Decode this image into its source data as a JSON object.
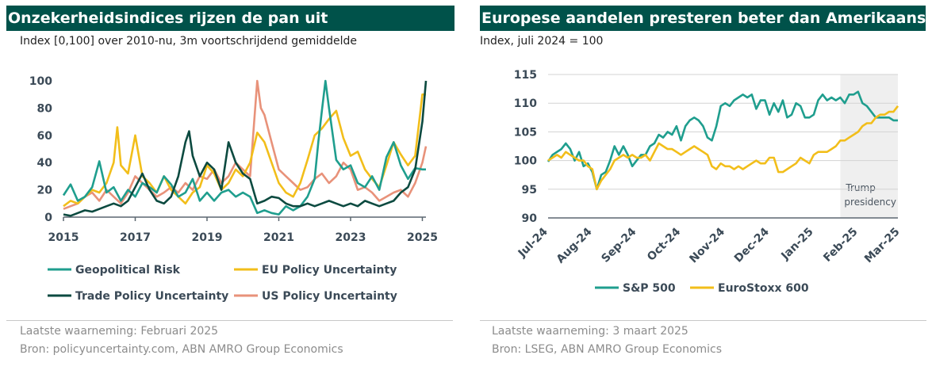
{
  "chart_data": [
    {
      "type": "line",
      "title": "Onzekerheidsindices rijzen de pan uit",
      "subtitle": "Index [0,100] over 2010-nu, 3m voortschrijdend gemiddelde",
      "ylim": [
        0,
        100
      ],
      "xlim": [
        2015,
        2025.1
      ],
      "yticks": [
        0,
        20,
        40,
        60,
        80,
        100
      ],
      "xticks": [
        2015,
        2017,
        2019,
        2021,
        2023,
        2025
      ],
      "xtick_labels": [
        "2015",
        "2017",
        "2019",
        "2021",
        "2023",
        "2025"
      ],
      "legend_position": "bottom",
      "series": [
        {
          "name": "Geopolitical Risk",
          "color": "#1f9e8e",
          "x": [
            2015,
            2015.2,
            2015.4,
            2015.6,
            2015.8,
            2016,
            2016.2,
            2016.4,
            2016.6,
            2016.8,
            2017,
            2017.2,
            2017.4,
            2017.6,
            2017.8,
            2018,
            2018.2,
            2018.4,
            2018.6,
            2018.8,
            2019,
            2019.2,
            2019.4,
            2019.6,
            2019.8,
            2020,
            2020.2,
            2020.4,
            2020.6,
            2020.8,
            2021,
            2021.2,
            2021.4,
            2021.6,
            2021.8,
            2022,
            2022.1,
            2022.2,
            2022.3,
            2022.4,
            2022.6,
            2022.8,
            2023,
            2023.2,
            2023.4,
            2023.6,
            2023.8,
            2024,
            2024.2,
            2024.4,
            2024.6,
            2024.8,
            2025,
            2025.1
          ],
          "y": [
            16,
            24,
            12,
            15,
            22,
            41,
            18,
            22,
            12,
            20,
            15,
            25,
            22,
            18,
            30,
            24,
            15,
            18,
            28,
            12,
            18,
            12,
            18,
            20,
            15,
            18,
            15,
            3,
            5,
            3,
            2,
            8,
            5,
            8,
            15,
            28,
            55,
            78,
            100,
            80,
            42,
            35,
            38,
            25,
            22,
            30,
            20,
            44,
            55,
            38,
            28,
            36,
            35,
            35
          ]
        },
        {
          "name": "EU Policy Uncertainty",
          "color": "#f2be1a",
          "x": [
            2015,
            2015.2,
            2015.4,
            2015.6,
            2015.8,
            2016,
            2016.2,
            2016.4,
            2016.5,
            2016.6,
            2016.8,
            2017,
            2017.2,
            2017.4,
            2017.6,
            2017.8,
            2018,
            2018.2,
            2018.4,
            2018.6,
            2018.8,
            2019,
            2019.2,
            2019.4,
            2019.6,
            2019.8,
            2020,
            2020.2,
            2020.4,
            2020.6,
            2020.8,
            2021,
            2021.2,
            2021.4,
            2021.6,
            2021.8,
            2022,
            2022.2,
            2022.4,
            2022.6,
            2022.8,
            2023,
            2023.2,
            2023.4,
            2023.6,
            2023.8,
            2024,
            2024.2,
            2024.4,
            2024.6,
            2024.8,
            2025,
            2025.1
          ],
          "y": [
            8,
            12,
            10,
            15,
            20,
            18,
            25,
            40,
            66,
            38,
            32,
            60,
            30,
            25,
            18,
            30,
            20,
            15,
            10,
            18,
            22,
            38,
            32,
            20,
            25,
            35,
            30,
            40,
            62,
            55,
            40,
            25,
            18,
            15,
            25,
            42,
            60,
            65,
            72,
            78,
            58,
            45,
            48,
            35,
            28,
            22,
            38,
            55,
            46,
            38,
            45,
            90,
            90
          ]
        },
        {
          "name": "Trade Policy Uncertainty",
          "color": "#0c4a40",
          "x": [
            2015,
            2015.2,
            2015.4,
            2015.6,
            2015.8,
            2016,
            2016.2,
            2016.4,
            2016.6,
            2016.8,
            2017,
            2017.2,
            2017.4,
            2017.6,
            2017.8,
            2018,
            2018.2,
            2018.4,
            2018.5,
            2018.6,
            2018.8,
            2019,
            2019.2,
            2019.4,
            2019.6,
            2019.8,
            2020,
            2020.2,
            2020.4,
            2020.6,
            2020.8,
            2021,
            2021.2,
            2021.4,
            2021.6,
            2021.8,
            2022,
            2022.2,
            2022.4,
            2022.6,
            2022.8,
            2023,
            2023.2,
            2023.4,
            2023.6,
            2023.8,
            2024,
            2024.2,
            2024.4,
            2024.6,
            2024.8,
            2025,
            2025.1
          ],
          "y": [
            2,
            1,
            3,
            5,
            4,
            6,
            8,
            10,
            8,
            12,
            22,
            32,
            20,
            12,
            10,
            15,
            30,
            55,
            63,
            45,
            30,
            40,
            35,
            20,
            55,
            40,
            32,
            28,
            10,
            12,
            15,
            14,
            10,
            8,
            8,
            10,
            8,
            10,
            12,
            10,
            8,
            10,
            8,
            12,
            10,
            8,
            10,
            12,
            18,
            22,
            35,
            70,
            100
          ]
        },
        {
          "name": "US Policy Uncertainty",
          "color": "#e8927a",
          "x": [
            2015,
            2015.2,
            2015.4,
            2015.6,
            2015.8,
            2016,
            2016.2,
            2016.4,
            2016.6,
            2016.8,
            2017,
            2017.2,
            2017.4,
            2017.6,
            2017.8,
            2018,
            2018.2,
            2018.4,
            2018.6,
            2018.8,
            2019,
            2019.2,
            2019.4,
            2019.6,
            2019.8,
            2020,
            2020.2,
            2020.3,
            2020.4,
            2020.5,
            2020.6,
            2020.8,
            2021,
            2021.2,
            2021.4,
            2021.6,
            2021.8,
            2022,
            2022.2,
            2022.4,
            2022.6,
            2022.8,
            2023,
            2023.2,
            2023.4,
            2023.6,
            2023.8,
            2024,
            2024.2,
            2024.4,
            2024.6,
            2024.8,
            2025,
            2025.1
          ],
          "y": [
            6,
            8,
            10,
            15,
            18,
            12,
            20,
            15,
            10,
            18,
            30,
            25,
            20,
            15,
            18,
            22,
            18,
            25,
            20,
            30,
            28,
            35,
            25,
            30,
            40,
            35,
            30,
            65,
            100,
            80,
            75,
            55,
            35,
            30,
            25,
            20,
            22,
            28,
            32,
            25,
            30,
            40,
            35,
            20,
            22,
            18,
            12,
            15,
            18,
            20,
            15,
            25,
            40,
            52
          ]
        }
      ]
    },
    {
      "type": "line",
      "title": "Europese aandelen presteren beter dan Amerikaanse",
      "subtitle": "Index, juli 2024 = 100",
      "ylim": [
        90,
        115
      ],
      "xlim": [
        0,
        7.9
      ],
      "yticks": [
        90,
        95,
        100,
        105,
        110,
        115
      ],
      "xticks": [
        0,
        1,
        2,
        3,
        4,
        5,
        6,
        7,
        7.95
      ],
      "xtick_labels": [
        "Jul-24",
        "Aug-24",
        "Sep-24",
        "Oct-24",
        "Nov-24",
        "Dec-24",
        "Jan-25",
        "Feb-25",
        "Mar-25"
      ],
      "shaded_region": {
        "x": [
          6.6,
          7.95
        ],
        "label_line1": "Trump",
        "label_line2": "presidency"
      },
      "legend_position": "bottom",
      "series": [
        {
          "name": "S&P 500",
          "color": "#1f9e8e",
          "x": [
            0,
            0.1,
            0.2,
            0.3,
            0.4,
            0.5,
            0.6,
            0.7,
            0.8,
            0.9,
            1.0,
            1.1,
            1.2,
            1.3,
            1.4,
            1.5,
            1.6,
            1.7,
            1.8,
            1.9,
            2.0,
            2.1,
            2.2,
            2.3,
            2.4,
            2.5,
            2.6,
            2.7,
            2.8,
            2.9,
            3.0,
            3.1,
            3.2,
            3.3,
            3.4,
            3.5,
            3.6,
            3.7,
            3.8,
            3.9,
            4.0,
            4.1,
            4.2,
            4.3,
            4.4,
            4.5,
            4.6,
            4.7,
            4.8,
            4.9,
            5.0,
            5.1,
            5.2,
            5.3,
            5.4,
            5.5,
            5.6,
            5.7,
            5.8,
            5.9,
            6.0,
            6.1,
            6.2,
            6.3,
            6.4,
            6.5,
            6.6,
            6.7,
            6.8,
            6.9,
            7.0,
            7.1,
            7.2,
            7.3,
            7.4,
            7.5,
            7.6,
            7.7,
            7.8,
            7.9
          ],
          "y": [
            99.8,
            101,
            101.5,
            102,
            103,
            102,
            100,
            101.5,
            99,
            99.5,
            98,
            95,
            97.5,
            98,
            100,
            102.5,
            101,
            102.5,
            101,
            99,
            100,
            101,
            101,
            102.5,
            103,
            104.5,
            104,
            105,
            104.5,
            106,
            103.5,
            106,
            107,
            107.5,
            107,
            106,
            104,
            103.5,
            106,
            109.5,
            110,
            109.5,
            110.5,
            111,
            111.5,
            111,
            111.5,
            109,
            110.5,
            110.5,
            108,
            110,
            108.5,
            110.5,
            107.5,
            108,
            110,
            109.5,
            107.5,
            107.5,
            108,
            110.5,
            111.5,
            110.5,
            111,
            110.5,
            111,
            110,
            111.5,
            111.5,
            112,
            110,
            109.5,
            108.5,
            107.5,
            107.5,
            107.5,
            107.5,
            107,
            107
          ]
        },
        {
          "name": "EuroStoxx 600",
          "color": "#f2be1a",
          "x": [
            0,
            0.1,
            0.2,
            0.3,
            0.4,
            0.5,
            0.6,
            0.7,
            0.8,
            0.9,
            1.0,
            1.1,
            1.2,
            1.3,
            1.4,
            1.5,
            1.6,
            1.7,
            1.8,
            1.9,
            2.0,
            2.1,
            2.2,
            2.3,
            2.4,
            2.5,
            2.6,
            2.7,
            2.8,
            2.9,
            3.0,
            3.1,
            3.2,
            3.3,
            3.4,
            3.5,
            3.6,
            3.7,
            3.8,
            3.9,
            4.0,
            4.1,
            4.2,
            4.3,
            4.4,
            4.5,
            4.6,
            4.7,
            4.8,
            4.9,
            5.0,
            5.1,
            5.2,
            5.3,
            5.4,
            5.5,
            5.6,
            5.7,
            5.8,
            5.9,
            6.0,
            6.1,
            6.2,
            6.3,
            6.4,
            6.5,
            6.6,
            6.7,
            6.8,
            6.9,
            7.0,
            7.1,
            7.2,
            7.3,
            7.4,
            7.5,
            7.6,
            7.7,
            7.8,
            7.9
          ],
          "y": [
            100,
            100.5,
            101,
            100.5,
            101.5,
            101,
            100.5,
            100,
            100,
            99,
            98.5,
            95,
            96.5,
            97.5,
            98.5,
            100,
            100.5,
            101,
            100.5,
            101,
            100.5,
            100.5,
            101,
            100,
            101.5,
            103,
            102.5,
            102,
            102,
            101.5,
            101,
            101.5,
            102,
            102.5,
            102,
            101.5,
            101,
            99,
            98.5,
            99.5,
            99,
            99,
            98.5,
            99,
            98.5,
            99,
            99.5,
            100,
            99.5,
            99.5,
            100.5,
            100.5,
            98,
            98,
            98.5,
            99,
            99.5,
            100.5,
            100,
            99.5,
            101,
            101.5,
            101.5,
            101.5,
            102,
            102.5,
            103.5,
            103.5,
            104,
            104.5,
            105,
            106,
            106.5,
            106.5,
            107.5,
            108,
            108,
            108.5,
            108.5,
            109.5
          ]
        }
      ]
    }
  ],
  "left": {
    "title": "Onzekerheidsindices rijzen de pan uit",
    "subtitle": "Index [0,100] over 2010-nu, 3m voortschrijdend gemiddelde",
    "footer_line1": "Laatste waarneming: Februari 2025",
    "footer_line2": "Bron: policyuncertainty.com, ABN AMRO Group Economics"
  },
  "right": {
    "title": "Europese aandelen presteren beter dan Amerikaanse",
    "subtitle": "Index, juli 2024 = 100",
    "footer_line1": "Laatste waarneming: 3 maart 2025",
    "footer_line2": "Bron: LSEG, ABN AMRO Group Economics"
  }
}
